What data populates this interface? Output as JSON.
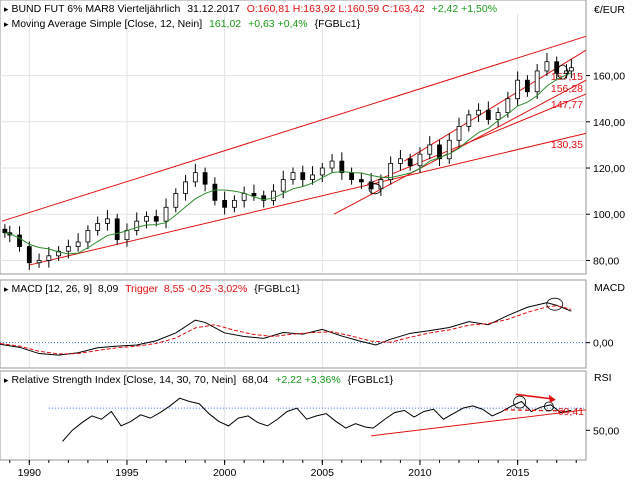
{
  "colors": {
    "candle": "#000000",
    "moving_average": "#2e8b2e",
    "trend_lines": "#e01010",
    "macd": "#000000",
    "trigger": "#e01010",
    "zero_line": "#3a6fd8",
    "rsi": "#000000",
    "rsi_band": "#3a6fd8",
    "up_delta": "#1a9a1a",
    "down_delta": "#e01010"
  },
  "price_panel": {
    "header": {
      "symbol": "BUND FUT 6% MAR8 Vierteljährlich",
      "date": "31.12.2017",
      "ohlc": "O:160,81 H:163,92 L:160,59 C:163,42",
      "change": "+2,42 +1,50%"
    },
    "ma_header": {
      "label": "Moving Average Simple [Close, 12, Nein]",
      "value": "161,02",
      "change": "+0,63 +0,4%",
      "ric": "{FGBLc1}"
    },
    "unit": "€/EUR",
    "y_ticks": [
      "160,00",
      "140,00",
      "120,00",
      "100,00",
      "80,00"
    ],
    "levels": [
      "157,15",
      "156,28",
      "147,77",
      "130,35"
    ]
  },
  "macd_panel": {
    "label": "MACD [12, 26, 9]",
    "value": "8,09",
    "trigger_label": "Trigger",
    "trigger_value": "8,55 -0,25 -3,02%",
    "ric": "{FGBLc1}",
    "unit": "MACD",
    "y_ticks": [
      "0,00"
    ]
  },
  "rsi_panel": {
    "label": "Relative Strength Index [Close, 14, 30, 70, Nein]",
    "value": "68,04",
    "change": "+2,22 +3,36%",
    "ric": "{FGBLc1}",
    "unit": "RSI",
    "y_ticks": [
      "50,00"
    ],
    "level": "69,41"
  },
  "x_axis": {
    "ticks": [
      "1990",
      "1995",
      "2000",
      "2005",
      "2010",
      "2015"
    ]
  },
  "chart_data": [
    {
      "type": "candlestick",
      "title": "BUND FUT 6% MAR8 Vierteljährlich",
      "frequency": "quarterly",
      "x_range": [
        1988.5,
        2018.5
      ],
      "ylim": [
        75,
        178
      ],
      "close": [
        [
          1988.75,
          92
        ],
        [
          1989.0,
          91
        ],
        [
          1989.5,
          86
        ],
        [
          1990.0,
          79
        ],
        [
          1990.5,
          80
        ],
        [
          1991.0,
          82
        ],
        [
          1991.5,
          84
        ],
        [
          1992.0,
          86
        ],
        [
          1992.5,
          88
        ],
        [
          1993.0,
          93
        ],
        [
          1993.5,
          96
        ],
        [
          1994.0,
          98
        ],
        [
          1994.5,
          89
        ],
        [
          1995.0,
          93
        ],
        [
          1995.5,
          97
        ],
        [
          1996.0,
          99
        ],
        [
          1996.5,
          97
        ],
        [
          1997.0,
          103
        ],
        [
          1997.5,
          109
        ],
        [
          1998.0,
          114
        ],
        [
          1998.5,
          118
        ],
        [
          1999.0,
          113
        ],
        [
          1999.5,
          106
        ],
        [
          2000.0,
          103
        ],
        [
          2000.5,
          106
        ],
        [
          2001.0,
          109
        ],
        [
          2001.5,
          108
        ],
        [
          2002.0,
          106
        ],
        [
          2002.5,
          110
        ],
        [
          2003.0,
          115
        ],
        [
          2003.5,
          118
        ],
        [
          2004.0,
          115
        ],
        [
          2004.5,
          117
        ],
        [
          2005.0,
          120
        ],
        [
          2005.5,
          123
        ],
        [
          2006.0,
          118
        ],
        [
          2006.5,
          115
        ],
        [
          2007.0,
          114
        ],
        [
          2007.5,
          111
        ],
        [
          2008.0,
          115
        ],
        [
          2008.5,
          122
        ],
        [
          2009.0,
          124
        ],
        [
          2009.5,
          121
        ],
        [
          2010.0,
          126
        ],
        [
          2010.5,
          130
        ],
        [
          2011.0,
          124
        ],
        [
          2011.5,
          132
        ],
        [
          2012.0,
          138
        ],
        [
          2012.5,
          143
        ],
        [
          2013.0,
          145
        ],
        [
          2013.5,
          141
        ],
        [
          2014.0,
          144
        ],
        [
          2014.5,
          150
        ],
        [
          2015.0,
          158
        ],
        [
          2015.5,
          153
        ],
        [
          2016.0,
          162
        ],
        [
          2016.5,
          166
        ],
        [
          2017.0,
          161
        ],
        [
          2017.5,
          162
        ],
        [
          2017.75,
          163.42
        ]
      ],
      "levels": [
        157.15,
        156.28,
        147.77,
        130.35
      ]
    },
    {
      "type": "line",
      "title": "MACD [12, 26, 9]",
      "ylim": [
        -6,
        12
      ],
      "series": [
        {
          "name": "MACD",
          "points": [
            [
              1988.5,
              -0.4
            ],
            [
              1989.5,
              -1.2
            ],
            [
              1990.5,
              -2.8
            ],
            [
              1991.5,
              -3.2
            ],
            [
              1992.5,
              -2.6
            ],
            [
              1993.5,
              -1.3
            ],
            [
              1994.5,
              -0.9
            ],
            [
              1995.5,
              -0.6
            ],
            [
              1996.5,
              0.5
            ],
            [
              1997.5,
              2.5
            ],
            [
              1998.5,
              5.8
            ],
            [
              1999.0,
              5.2
            ],
            [
              2000.0,
              2.5
            ],
            [
              2001.0,
              1.6
            ],
            [
              2002.0,
              1.1
            ],
            [
              2003.0,
              2.6
            ],
            [
              2004.0,
              2.2
            ],
            [
              2005.0,
              3.4
            ],
            [
              2006.0,
              1.7
            ],
            [
              2007.0,
              0.3
            ],
            [
              2007.75,
              -0.6
            ],
            [
              2008.5,
              0.9
            ],
            [
              2009.5,
              2.4
            ],
            [
              2010.5,
              3.1
            ],
            [
              2011.5,
              3.9
            ],
            [
              2012.5,
              5.4
            ],
            [
              2013.5,
              4.6
            ],
            [
              2014.5,
              7.0
            ],
            [
              2015.5,
              9.1
            ],
            [
              2016.5,
              10.3
            ],
            [
              2017.0,
              9.6
            ],
            [
              2017.75,
              8.09
            ]
          ]
        },
        {
          "name": "Trigger",
          "points": [
            [
              1988.5,
              -0.2
            ],
            [
              1989.5,
              -0.9
            ],
            [
              1990.5,
              -2.2
            ],
            [
              1991.5,
              -2.9
            ],
            [
              1992.5,
              -2.8
            ],
            [
              1993.5,
              -2.0
            ],
            [
              1994.5,
              -1.3
            ],
            [
              1995.5,
              -0.9
            ],
            [
              1996.5,
              -0.2
            ],
            [
              1997.5,
              1.2
            ],
            [
              1998.5,
              3.8
            ],
            [
              1999.5,
              4.6
            ],
            [
              2000.5,
              3.2
            ],
            [
              2001.5,
              2.1
            ],
            [
              2002.5,
              1.6
            ],
            [
              2003.5,
              2.2
            ],
            [
              2004.5,
              2.6
            ],
            [
              2005.5,
              2.8
            ],
            [
              2006.5,
              1.7
            ],
            [
              2007.5,
              0.4
            ],
            [
              2008.5,
              0.1
            ],
            [
              2009.5,
              1.4
            ],
            [
              2010.5,
              2.5
            ],
            [
              2011.5,
              3.3
            ],
            [
              2012.5,
              4.5
            ],
            [
              2013.5,
              4.9
            ],
            [
              2014.5,
              6.0
            ],
            [
              2015.5,
              7.8
            ],
            [
              2016.5,
              9.2
            ],
            [
              2017.0,
              9.5
            ],
            [
              2017.75,
              8.55
            ]
          ]
        }
      ]
    },
    {
      "type": "line",
      "title": "Relative Strength Index [Close, 14, 30, 70, Nein]",
      "ylim": [
        25,
        90
      ],
      "bands": [
        70
      ],
      "series": [
        {
          "name": "RSI",
          "points": [
            [
              1991.7,
              40
            ],
            [
              1992.2,
              50
            ],
            [
              1992.7,
              57
            ],
            [
              1993.2,
              63
            ],
            [
              1993.7,
              60
            ],
            [
              1994.2,
              67
            ],
            [
              1994.7,
              54
            ],
            [
              1995.2,
              58
            ],
            [
              1995.7,
              64
            ],
            [
              1996.2,
              61
            ],
            [
              1996.7,
              66
            ],
            [
              1997.2,
              72
            ],
            [
              1997.7,
              79
            ],
            [
              1998.2,
              76
            ],
            [
              1998.7,
              74
            ],
            [
              1999.2,
              65
            ],
            [
              1999.7,
              58
            ],
            [
              2000.2,
              54
            ],
            [
              2000.7,
              61
            ],
            [
              2001.2,
              63
            ],
            [
              2001.7,
              57
            ],
            [
              2002.2,
              54
            ],
            [
              2002.7,
              60
            ],
            [
              2003.2,
              67
            ],
            [
              2003.7,
              70
            ],
            [
              2004.2,
              60
            ],
            [
              2004.7,
              63
            ],
            [
              2005.2,
              65
            ],
            [
              2005.7,
              58
            ],
            [
              2006.2,
              52
            ],
            [
              2006.7,
              56
            ],
            [
              2007.2,
              53
            ],
            [
              2007.6,
              52
            ],
            [
              2008.2,
              60
            ],
            [
              2008.7,
              66
            ],
            [
              2009.2,
              68
            ],
            [
              2009.7,
              62
            ],
            [
              2010.2,
              67
            ],
            [
              2010.7,
              69
            ],
            [
              2011.2,
              60
            ],
            [
              2011.7,
              65
            ],
            [
              2012.2,
              70
            ],
            [
              2012.7,
              72
            ],
            [
              2013.2,
              69
            ],
            [
              2013.7,
              63
            ],
            [
              2014.2,
              67
            ],
            [
              2014.7,
              72
            ],
            [
              2015.2,
              76
            ],
            [
              2015.7,
              67
            ],
            [
              2016.2,
              71
            ],
            [
              2016.7,
              73
            ],
            [
              2017.2,
              66
            ],
            [
              2017.75,
              68.04
            ]
          ]
        }
      ],
      "levels": [
        69.41
      ]
    }
  ]
}
